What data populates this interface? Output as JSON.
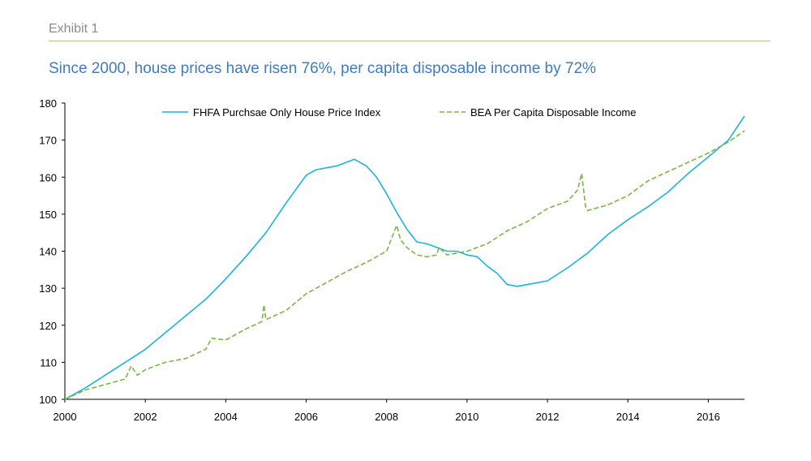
{
  "header": {
    "exhibit": "Exhibit 1",
    "title": "Since 2000, house prices have risen 76%, per capita disposable income by 72%"
  },
  "colors": {
    "accent_rule": "#a9c97e",
    "title": "#3f7bbf",
    "hpi_line": "#1eb3de",
    "income_line": "#7ab648"
  },
  "chart_data": {
    "type": "line",
    "title": "Since 2000, house prices have risen 76%, per capita disposable income by 72%",
    "xlabel": "",
    "ylabel": "",
    "xlim": [
      2000,
      2016.9
    ],
    "ylim": [
      100,
      180
    ],
    "x_ticks": [
      "2000",
      "2002",
      "2004",
      "2006",
      "2008",
      "2010",
      "2012",
      "2014",
      "2016"
    ],
    "y_ticks": [
      "100",
      "110",
      "120",
      "130",
      "140",
      "150",
      "160",
      "170",
      "180"
    ],
    "grid": false,
    "legend_position": "top-center",
    "series": [
      {
        "name": "FHFA Purchsae Only House Price Index",
        "style": "solid",
        "color": "#1eb3de",
        "x": [
          2000.0,
          2000.5,
          2001.0,
          2001.5,
          2002.0,
          2002.5,
          2003.0,
          2003.5,
          2004.0,
          2004.5,
          2005.0,
          2005.5,
          2006.0,
          2006.25,
          2006.5,
          2006.75,
          2007.0,
          2007.2,
          2007.5,
          2007.75,
          2008.0,
          2008.25,
          2008.5,
          2008.75,
          2009.0,
          2009.25,
          2009.5,
          2009.75,
          2010.0,
          2010.25,
          2010.5,
          2010.75,
          2011.0,
          2011.25,
          2011.5,
          2011.75,
          2012.0,
          2012.5,
          2013.0,
          2013.5,
          2014.0,
          2014.5,
          2015.0,
          2015.5,
          2016.0,
          2016.5,
          2016.9
        ],
        "y": [
          100.0,
          103.0,
          106.5,
          110.0,
          113.5,
          118.0,
          122.5,
          127.0,
          132.5,
          138.5,
          145.0,
          153.0,
          160.5,
          162.0,
          162.5,
          163.0,
          164.0,
          164.8,
          163.0,
          160.0,
          155.5,
          150.5,
          146.0,
          142.5,
          142.0,
          141.0,
          140.0,
          140.0,
          139.0,
          138.5,
          136.0,
          134.0,
          131.0,
          130.5,
          131.0,
          131.5,
          132.0,
          135.5,
          139.5,
          144.5,
          148.5,
          152.0,
          156.0,
          161.0,
          165.5,
          170.0,
          176.5
        ]
      },
      {
        "name": "BEA Per Capita Disposable Income",
        "style": "dashed",
        "color": "#7ab648",
        "x": [
          2000.0,
          2000.5,
          2001.0,
          2001.5,
          2001.65,
          2001.8,
          2002.0,
          2002.5,
          2003.0,
          2003.5,
          2003.65,
          2004.0,
          2004.5,
          2004.9,
          2004.95,
          2005.0,
          2005.5,
          2006.0,
          2006.5,
          2007.0,
          2007.5,
          2008.0,
          2008.25,
          2008.35,
          2008.5,
          2008.75,
          2009.0,
          2009.25,
          2009.3,
          2009.5,
          2010.0,
          2010.5,
          2011.0,
          2011.5,
          2012.0,
          2012.5,
          2012.75,
          2012.85,
          2012.95,
          2013.0,
          2013.5,
          2014.0,
          2014.5,
          2015.0,
          2015.5,
          2016.0,
          2016.5,
          2016.9
        ],
        "y": [
          100.0,
          102.5,
          104.0,
          105.5,
          109.0,
          106.5,
          108.0,
          110.0,
          111.0,
          113.5,
          116.5,
          116.0,
          119.0,
          121.0,
          125.5,
          121.5,
          124.0,
          128.5,
          131.5,
          134.5,
          137.0,
          140.0,
          147.0,
          143.0,
          141.0,
          139.0,
          138.5,
          139.0,
          141.0,
          139.0,
          140.0,
          142.0,
          145.5,
          148.0,
          151.5,
          153.5,
          156.5,
          161.0,
          152.0,
          151.0,
          152.5,
          155.0,
          159.0,
          161.5,
          164.0,
          166.5,
          169.5,
          172.5
        ]
      }
    ]
  }
}
